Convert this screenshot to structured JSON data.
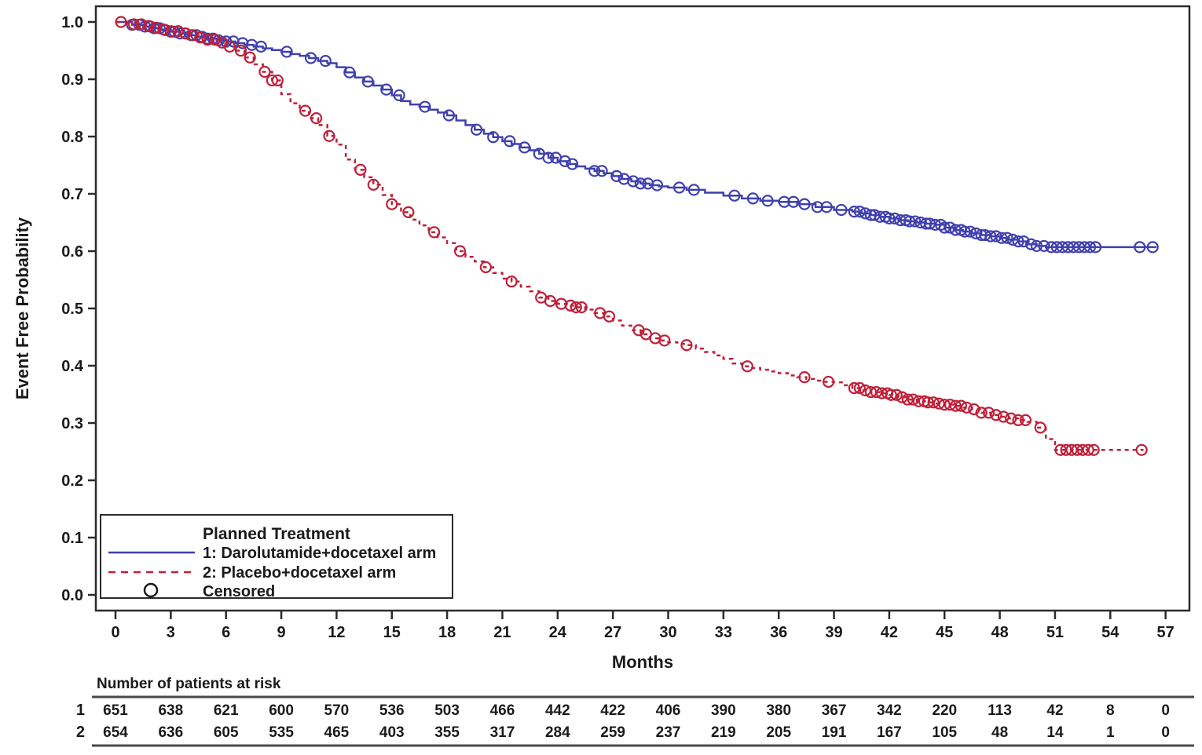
{
  "chart_data": {
    "type": "line",
    "subtype": "kaplan-meier-step",
    "title": "",
    "xlabel": "Months",
    "ylabel": "Event Free Probability",
    "xlim": [
      0,
      57
    ],
    "ylim": [
      0.0,
      1.0
    ],
    "grid": "off",
    "x_ticks": [
      0,
      3,
      6,
      9,
      12,
      15,
      18,
      21,
      24,
      27,
      30,
      33,
      36,
      39,
      42,
      45,
      48,
      51,
      54,
      57
    ],
    "y_tick_labels": [
      "0.0",
      "0.1",
      "0.2",
      "0.3",
      "0.4",
      "0.5",
      "0.6",
      "0.7",
      "0.8",
      "0.9",
      "1.0"
    ],
    "legend": {
      "title": "Planned Treatment",
      "position": "bottom-left-inside",
      "censored_label": "Censored"
    },
    "series": [
      {
        "name": "1: Darolutamide+docetaxel arm",
        "color": "#4040ae",
        "line_style": "solid",
        "points": [
          [
            0,
            1.0
          ],
          [
            0.9,
            0.995
          ],
          [
            1.5,
            0.992
          ],
          [
            2,
            0.989
          ],
          [
            2.5,
            0.986
          ],
          [
            3,
            0.983
          ],
          [
            3.5,
            0.98
          ],
          [
            4,
            0.977
          ],
          [
            4.5,
            0.974
          ],
          [
            5,
            0.971
          ],
          [
            5.5,
            0.968
          ],
          [
            6,
            0.966
          ],
          [
            6.5,
            0.963
          ],
          [
            7,
            0.96
          ],
          [
            7.5,
            0.957
          ],
          [
            8,
            0.954
          ],
          [
            8.5,
            0.951
          ],
          [
            9,
            0.948
          ],
          [
            9.5,
            0.944
          ],
          [
            10,
            0.941
          ],
          [
            10.5,
            0.937
          ],
          [
            11,
            0.932
          ],
          [
            11.5,
            0.928
          ],
          [
            12,
            0.921
          ],
          [
            12.5,
            0.912
          ],
          [
            13,
            0.903
          ],
          [
            13.5,
            0.896
          ],
          [
            14,
            0.889
          ],
          [
            14.5,
            0.882
          ],
          [
            15,
            0.872
          ],
          [
            15.5,
            0.862
          ],
          [
            16,
            0.856
          ],
          [
            16.5,
            0.852
          ],
          [
            17,
            0.847
          ],
          [
            17.5,
            0.842
          ],
          [
            18,
            0.837
          ],
          [
            18.5,
            0.828
          ],
          [
            19,
            0.82
          ],
          [
            19.5,
            0.812
          ],
          [
            20,
            0.805
          ],
          [
            20.5,
            0.799
          ],
          [
            21,
            0.792
          ],
          [
            21.5,
            0.787
          ],
          [
            22,
            0.781
          ],
          [
            22.5,
            0.776
          ],
          [
            23,
            0.77
          ],
          [
            23.5,
            0.763
          ],
          [
            24,
            0.757
          ],
          [
            24.5,
            0.752
          ],
          [
            25,
            0.748
          ],
          [
            25.5,
            0.744
          ],
          [
            26,
            0.74
          ],
          [
            26.5,
            0.736
          ],
          [
            27,
            0.731
          ],
          [
            27.5,
            0.726
          ],
          [
            28,
            0.722
          ],
          [
            28.5,
            0.718
          ],
          [
            29,
            0.715
          ],
          [
            29.5,
            0.713
          ],
          [
            30,
            0.711
          ],
          [
            31,
            0.707
          ],
          [
            32,
            0.702
          ],
          [
            33,
            0.697
          ],
          [
            34,
            0.692
          ],
          [
            35,
            0.688
          ],
          [
            36,
            0.686
          ],
          [
            37,
            0.682
          ],
          [
            38,
            0.677
          ],
          [
            39,
            0.672
          ],
          [
            40,
            0.669
          ],
          [
            40.5,
            0.666
          ],
          [
            41,
            0.663
          ],
          [
            41.5,
            0.66
          ],
          [
            42,
            0.657
          ],
          [
            42.5,
            0.654
          ],
          [
            43,
            0.652
          ],
          [
            43.5,
            0.65
          ],
          [
            44,
            0.648
          ],
          [
            44.5,
            0.646
          ],
          [
            45,
            0.641
          ],
          [
            45.5,
            0.637
          ],
          [
            46,
            0.634
          ],
          [
            46.5,
            0.631
          ],
          [
            47,
            0.628
          ],
          [
            47.5,
            0.626
          ],
          [
            48,
            0.623
          ],
          [
            48.5,
            0.62
          ],
          [
            49,
            0.617
          ],
          [
            49.5,
            0.612
          ],
          [
            50,
            0.609
          ],
          [
            50.5,
            0.607
          ],
          [
            56.5,
            0.607
          ]
        ],
        "censor_times": [
          0.9,
          1.3,
          1.6,
          1.9,
          2.1,
          2.4,
          2.7,
          3.0,
          3.2,
          3.5,
          3.8,
          4.1,
          4.4,
          4.7,
          5.0,
          5.3,
          5.6,
          6.0,
          6.4,
          6.9,
          7.4,
          7.9,
          9.3,
          10.6,
          11.4,
          12.7,
          13.7,
          14.7,
          15.4,
          16.8,
          18.1,
          19.6,
          20.5,
          21.4,
          22.2,
          23.0,
          23.5,
          23.9,
          24.4,
          24.8,
          26.0,
          26.4,
          27.2,
          27.6,
          28.1,
          28.5,
          28.9,
          29.4,
          30.6,
          31.4,
          33.6,
          34.6,
          35.4,
          36.3,
          36.8,
          37.4,
          38.1,
          38.6,
          39.4,
          40.1,
          40.4,
          40.7,
          41.0,
          41.2,
          41.5,
          41.8,
          42.0,
          42.3,
          42.6,
          42.9,
          43.1,
          43.4,
          43.7,
          44.0,
          44.2,
          44.5,
          44.8,
          45.0,
          45.3,
          45.6,
          45.9,
          46.1,
          46.4,
          46.7,
          47.0,
          47.2,
          47.5,
          47.8,
          48.1,
          48.4,
          48.7,
          49.0,
          49.3,
          49.7,
          50.0,
          50.4,
          50.8,
          51.1,
          51.4,
          51.7,
          52.0,
          52.3,
          52.6,
          52.9,
          53.2,
          55.6,
          56.3
        ]
      },
      {
        "name": "2: Placebo+docetaxel arm",
        "color": "#bf2039",
        "line_style": "dashed",
        "points": [
          [
            0,
            1.0
          ],
          [
            0.9,
            0.996
          ],
          [
            1.5,
            0.993
          ],
          [
            2,
            0.99
          ],
          [
            2.5,
            0.987
          ],
          [
            3,
            0.984
          ],
          [
            3.5,
            0.98
          ],
          [
            4,
            0.977
          ],
          [
            4.5,
            0.973
          ],
          [
            5,
            0.969
          ],
          [
            5.5,
            0.964
          ],
          [
            6,
            0.957
          ],
          [
            6.5,
            0.95
          ],
          [
            7,
            0.938
          ],
          [
            7.5,
            0.926
          ],
          [
            8,
            0.913
          ],
          [
            8.5,
            0.898
          ],
          [
            9,
            0.874
          ],
          [
            9.5,
            0.858
          ],
          [
            10,
            0.845
          ],
          [
            10.5,
            0.832
          ],
          [
            11,
            0.82
          ],
          [
            11.5,
            0.801
          ],
          [
            12,
            0.786
          ],
          [
            12.5,
            0.76
          ],
          [
            13,
            0.742
          ],
          [
            13.5,
            0.729
          ],
          [
            14,
            0.716
          ],
          [
            14.5,
            0.698
          ],
          [
            15,
            0.682
          ],
          [
            15.5,
            0.668
          ],
          [
            16,
            0.655
          ],
          [
            16.5,
            0.645
          ],
          [
            17,
            0.633
          ],
          [
            17.5,
            0.624
          ],
          [
            18,
            0.614
          ],
          [
            18.5,
            0.6
          ],
          [
            19,
            0.59
          ],
          [
            19.5,
            0.582
          ],
          [
            20,
            0.572
          ],
          [
            20.5,
            0.562
          ],
          [
            21,
            0.552
          ],
          [
            21.5,
            0.547
          ],
          [
            22,
            0.538
          ],
          [
            22.5,
            0.53
          ],
          [
            23,
            0.519
          ],
          [
            23.5,
            0.513
          ],
          [
            24,
            0.508
          ],
          [
            24.5,
            0.505
          ],
          [
            25,
            0.502
          ],
          [
            25.5,
            0.498
          ],
          [
            26,
            0.492
          ],
          [
            26.5,
            0.486
          ],
          [
            27,
            0.479
          ],
          [
            27.5,
            0.47
          ],
          [
            28,
            0.462
          ],
          [
            28.5,
            0.455
          ],
          [
            29,
            0.448
          ],
          [
            29.5,
            0.444
          ],
          [
            30,
            0.441
          ],
          [
            30.5,
            0.438
          ],
          [
            31,
            0.436
          ],
          [
            31.5,
            0.43
          ],
          [
            32,
            0.424
          ],
          [
            32.5,
            0.418
          ],
          [
            33,
            0.412
          ],
          [
            33.5,
            0.404
          ],
          [
            34,
            0.399
          ],
          [
            34.5,
            0.396
          ],
          [
            35,
            0.393
          ],
          [
            35.5,
            0.39
          ],
          [
            36,
            0.387
          ],
          [
            36.5,
            0.383
          ],
          [
            37,
            0.38
          ],
          [
            37.5,
            0.377
          ],
          [
            38,
            0.374
          ],
          [
            38.5,
            0.372
          ],
          [
            39,
            0.371
          ],
          [
            39.5,
            0.366
          ],
          [
            40,
            0.361
          ],
          [
            40.5,
            0.357
          ],
          [
            41,
            0.354
          ],
          [
            41.5,
            0.352
          ],
          [
            42,
            0.349
          ],
          [
            42.5,
            0.345
          ],
          [
            43,
            0.341
          ],
          [
            43.5,
            0.338
          ],
          [
            44,
            0.336
          ],
          [
            44.5,
            0.334
          ],
          [
            45,
            0.332
          ],
          [
            45.5,
            0.33
          ],
          [
            46,
            0.327
          ],
          [
            46.5,
            0.324
          ],
          [
            47,
            0.318
          ],
          [
            47.5,
            0.314
          ],
          [
            48,
            0.311
          ],
          [
            48.5,
            0.308
          ],
          [
            49,
            0.305
          ],
          [
            49.5,
            0.302
          ],
          [
            50,
            0.292
          ],
          [
            50.5,
            0.272
          ],
          [
            51,
            0.253
          ],
          [
            55.8,
            0.253
          ]
        ],
        "censor_times": [
          0.3,
          1.0,
          1.4,
          1.8,
          2.2,
          2.6,
          3.0,
          3.4,
          3.8,
          4.2,
          4.6,
          5.0,
          5.4,
          5.8,
          6.2,
          6.8,
          7.3,
          8.1,
          8.5,
          8.8,
          10.3,
          10.9,
          11.6,
          13.3,
          14.0,
          15.0,
          15.9,
          17.3,
          18.7,
          20.1,
          21.5,
          23.1,
          23.6,
          24.2,
          24.7,
          25.0,
          25.3,
          26.3,
          26.8,
          28.4,
          28.8,
          29.3,
          29.8,
          31.0,
          34.3,
          37.4,
          38.7,
          40.1,
          40.4,
          40.7,
          41.0,
          41.3,
          41.6,
          41.9,
          42.1,
          42.4,
          42.7,
          43.0,
          43.3,
          43.6,
          43.9,
          44.1,
          44.4,
          44.7,
          45.0,
          45.3,
          45.6,
          45.9,
          46.2,
          46.6,
          47.0,
          47.4,
          47.8,
          48.2,
          48.6,
          49.0,
          49.4,
          50.2,
          51.3,
          51.6,
          51.9,
          52.2,
          52.5,
          52.8,
          53.1,
          55.7
        ]
      }
    ],
    "risk_table": {
      "title": "Number of patients at risk",
      "months": [
        0,
        3,
        6,
        9,
        12,
        15,
        18,
        21,
        24,
        27,
        30,
        33,
        36,
        39,
        42,
        45,
        48,
        51,
        54,
        57
      ],
      "rows": [
        {
          "label": "1",
          "values": [
            651,
            638,
            621,
            600,
            570,
            536,
            503,
            466,
            442,
            422,
            406,
            390,
            380,
            367,
            342,
            220,
            113,
            42,
            8,
            0
          ]
        },
        {
          "label": "2",
          "values": [
            654,
            636,
            605,
            535,
            465,
            403,
            355,
            317,
            284,
            259,
            237,
            219,
            205,
            191,
            167,
            105,
            48,
            14,
            1,
            0
          ]
        }
      ]
    }
  }
}
